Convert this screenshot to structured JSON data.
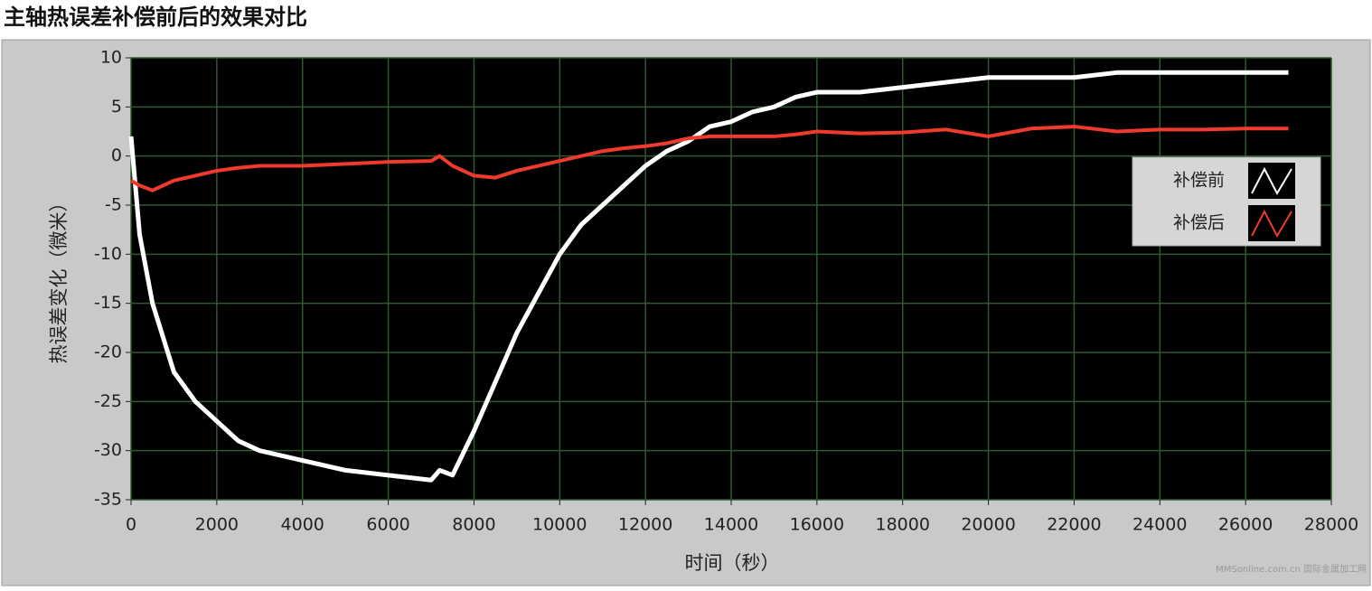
{
  "chart_data": {
    "type": "line",
    "title": "主轴热误差补偿前后的效果对比",
    "x_label": "时间（秒）",
    "y_label": "热误差变化（微米）",
    "watermark": "MMSonline.com.cn 国际金属加工网",
    "x": [
      0,
      200,
      500,
      1000,
      1500,
      2000,
      2500,
      3000,
      4000,
      5000,
      6000,
      7000,
      7200,
      7500,
      8000,
      8500,
      9000,
      9500,
      10000,
      10500,
      11000,
      11500,
      12000,
      12500,
      13000,
      13500,
      14000,
      14500,
      15000,
      15500,
      16000,
      17000,
      18000,
      19000,
      20000,
      21000,
      22000,
      23000,
      24000,
      25000,
      26000,
      27000
    ],
    "series": [
      {
        "name": "补偿前",
        "color": "#ffffff",
        "values": [
          2,
          -8,
          -15,
          -22,
          -25,
          -27,
          -29,
          -30,
          -31,
          -32,
          -32.5,
          -33,
          -32,
          -32.5,
          -28,
          -23,
          -18,
          -14,
          -10,
          -7,
          -5,
          -3,
          -1,
          0.5,
          1.5,
          3,
          3.5,
          4.5,
          5,
          6,
          6.5,
          6.5,
          7,
          7.5,
          8,
          8,
          8,
          8.5,
          8.5,
          8.5,
          8.5,
          8.5
        ]
      },
      {
        "name": "补偿后",
        "color": "#f03a2e",
        "values": [
          -2.5,
          -3,
          -3.5,
          -2.5,
          -2,
          -1.5,
          -1.2,
          -1,
          -1,
          -0.8,
          -0.6,
          -0.5,
          0,
          -1,
          -2,
          -2.2,
          -1.5,
          -1,
          -0.5,
          0,
          0.5,
          0.8,
          1,
          1.3,
          1.8,
          2,
          2,
          2,
          2,
          2.2,
          2.5,
          2.3,
          2.4,
          2.7,
          2,
          2.8,
          3,
          2.5,
          2.7,
          2.7,
          2.8,
          2.8
        ]
      }
    ],
    "xlim": [
      0,
      28000
    ],
    "xticks": [
      0,
      2000,
      4000,
      6000,
      8000,
      10000,
      12000,
      14000,
      16000,
      18000,
      20000,
      22000,
      24000,
      26000,
      28000
    ],
    "ylim": [
      -35,
      10
    ],
    "yticks": [
      -35,
      -30,
      -25,
      -20,
      -15,
      -10,
      -5,
      0,
      5,
      10
    ],
    "grid": true,
    "legend": "upper right"
  }
}
